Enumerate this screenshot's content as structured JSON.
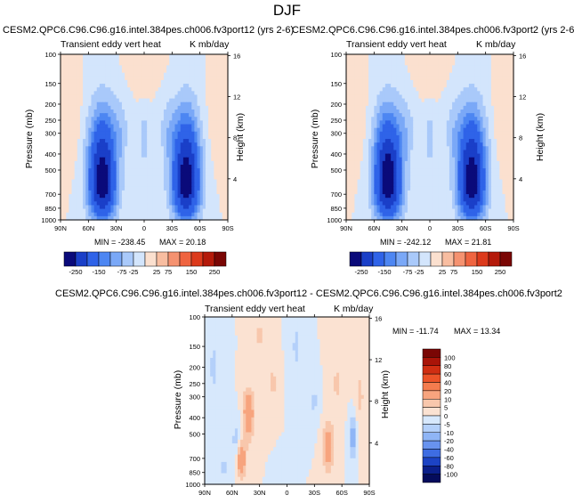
{
  "figure_title": "DJF",
  "chart_data": [
    {
      "type": "heatmap",
      "title": "CESM2.QPC6.C96.C96.g16.intel.384pes.ch006.fv3port12 (yrs 2-6)",
      "left_subtitle": "Transient eddy vert heat",
      "right_subtitle": "K mb/day",
      "ylabel": "Pressure (mb)",
      "right_ylabel": "Height (km)",
      "x_ticks": [
        "90N",
        "60N",
        "30N",
        "0",
        "30S",
        "60S",
        "90S"
      ],
      "y_ticks": [
        "100",
        "150",
        "200",
        "250",
        "300",
        "400",
        "500",
        "700",
        "850",
        "1000"
      ],
      "height_ticks": [
        "16",
        "12",
        "8",
        "4"
      ],
      "min_label": "MIN = -238.45",
      "max_label": "MAX = 20.18",
      "min": -238.45,
      "max": 20.18,
      "lobes": [
        {
          "lat": 45,
          "p_top": 170,
          "p_core": 600,
          "amp": -238
        },
        {
          "lat": -45,
          "p_top": 170,
          "p_core": 600,
          "amp": -235
        }
      ],
      "colorbar_levels": [
        "-250",
        "-150",
        "-75",
        "-25",
        "25",
        "75",
        "150",
        "250"
      ],
      "colorbar_orientation": "horizontal"
    },
    {
      "type": "heatmap",
      "title": "CESM2.QPC6.C96.C96.g16.intel.384pes.ch006.fv3port2 (yrs 2-6)",
      "left_subtitle": "Transient eddy vert heat",
      "right_subtitle": "K mb/day",
      "ylabel": "Pressure (mb)",
      "right_ylabel": "Height (km)",
      "x_ticks": [
        "90N",
        "60N",
        "30N",
        "0",
        "30S",
        "60S",
        "90S"
      ],
      "y_ticks": [
        "100",
        "150",
        "200",
        "250",
        "300",
        "400",
        "500",
        "700",
        "850",
        "1000"
      ],
      "height_ticks": [
        "16",
        "12",
        "8",
        "4"
      ],
      "min_label": "MIN = -242.12",
      "max_label": "MAX = 21.81",
      "min": -242.12,
      "max": 21.81,
      "lobes": [
        {
          "lat": 45,
          "p_top": 170,
          "p_core": 600,
          "amp": -242
        },
        {
          "lat": -45,
          "p_top": 170,
          "p_core": 600,
          "amp": -238
        }
      ],
      "colorbar_levels": [
        "-250",
        "-150",
        "-75",
        "-25",
        "25",
        "75",
        "150",
        "250"
      ],
      "colorbar_orientation": "horizontal"
    },
    {
      "type": "heatmap",
      "title": "CESM2.QPC6.C96.C96.g16.intel.384pes.ch006.fv3port12 - CESM2.QPC6.C96.C96.g16.intel.384pes.ch006.fv3port2",
      "left_subtitle": "Transient eddy vert heat",
      "right_subtitle": "K mb/day",
      "ylabel": "Pressure (mb)",
      "right_ylabel": "Height (km)",
      "x_ticks": [
        "90N",
        "60N",
        "30N",
        "0",
        "30S",
        "60S",
        "90S"
      ],
      "y_ticks": [
        "100",
        "150",
        "200",
        "250",
        "300",
        "400",
        "500",
        "700",
        "850",
        "1000"
      ],
      "height_ticks": [
        "16",
        "12",
        "8",
        "4"
      ],
      "min_label": "MIN = -11.74",
      "max_label": "MAX = 13.34",
      "min": -11.74,
      "max": 13.34,
      "colorbar_levels": [
        "100",
        "80",
        "60",
        "40",
        "20",
        "10",
        "5",
        "0",
        "-5",
        "-10",
        "-20",
        "-40",
        "-60",
        "-80",
        "-100"
      ],
      "colorbar_orientation": "vertical"
    }
  ],
  "colors": {
    "top_palette": [
      "#0a0a7a",
      "#1a3fc8",
      "#2f63e8",
      "#4d86f2",
      "#7aa8f7",
      "#a9c9fa",
      "#d3e5fc",
      "#fbe0cf",
      "#f8bda0",
      "#f59270",
      "#ef6440",
      "#dc3a1c",
      "#b41a0a",
      "#7a0604"
    ],
    "diff_palette": [
      "#7a0604",
      "#a91408",
      "#d02e12",
      "#ec5328",
      "#f47c4e",
      "#f7a47e",
      "#f8c7ac",
      "#fbe2d2",
      "#d7e8fc",
      "#b4d0fa",
      "#8fb5f6",
      "#6893ef",
      "#3e6de2",
      "#1c43c4",
      "#0b1f8a",
      "#050c5c"
    ]
  }
}
